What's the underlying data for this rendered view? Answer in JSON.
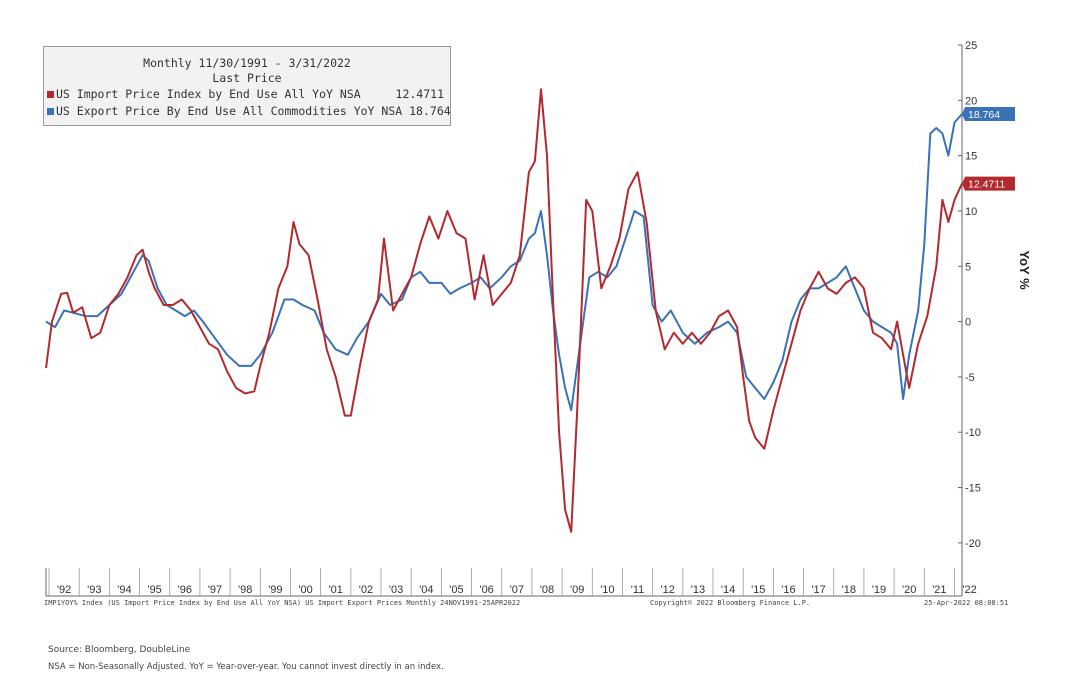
{
  "legend": {
    "title": "Monthly 11/30/1991 - 3/31/2022",
    "subtitle": "Last Price",
    "entries": [
      {
        "label": "US Import Price Index by End Use All YoY NSA",
        "value": "12.4711",
        "color": "#b22a2e"
      },
      {
        "label": "US Export Price By End Use All Commodities YoY NSA",
        "value": "18.764",
        "color": "#3a72b8"
      }
    ]
  },
  "chart_data": {
    "type": "line",
    "ylabel": "YoY %",
    "ylim": [
      -22,
      25
    ],
    "yticks": [
      25,
      20,
      15,
      10,
      5,
      0,
      -5,
      -10,
      -15,
      -20
    ],
    "ytick_labels": [
      "25",
      "20",
      "15",
      "10",
      "5",
      "0",
      "-5",
      "-10",
      "-15",
      "-20"
    ],
    "xlim": [
      1991.9,
      2022.25
    ],
    "xtick_labels": [
      "'92",
      "'93",
      "'94",
      "'95",
      "'96",
      "'97",
      "'98",
      "'99",
      "'00",
      "'01",
      "'02",
      "'03",
      "'04",
      "'05",
      "'06",
      "'07",
      "'08",
      "'09",
      "'10",
      "'11",
      "'12",
      "'13",
      "'14",
      "'15",
      "'16",
      "'17",
      "'18",
      "'19",
      "'20",
      "'21",
      "'22"
    ],
    "grid": false,
    "series": [
      {
        "name": "US Import Price Index by End Use All YoY NSA",
        "color": "#b22a2e",
        "last_value": "12.4711",
        "x": [
          1991.9,
          1992.1,
          1992.4,
          1992.6,
          1992.8,
          1993.1,
          1993.4,
          1993.7,
          1994.0,
          1994.3,
          1994.6,
          1994.9,
          1995.1,
          1995.3,
          1995.5,
          1995.8,
          1996.1,
          1996.4,
          1996.7,
          1997.0,
          1997.3,
          1997.6,
          1997.9,
          1998.2,
          1998.5,
          1998.8,
          1999.0,
          1999.3,
          1999.6,
          1999.9,
          2000.1,
          2000.3,
          2000.6,
          2000.9,
          2001.2,
          2001.5,
          2001.8,
          2002.0,
          2002.3,
          2002.6,
          2002.9,
          2003.1,
          2003.4,
          2003.7,
          2004.0,
          2004.3,
          2004.6,
          2004.9,
          2005.2,
          2005.5,
          2005.8,
          2006.1,
          2006.4,
          2006.7,
          2007.0,
          2007.3,
          2007.6,
          2007.9,
          2008.1,
          2008.3,
          2008.5,
          2008.7,
          2008.9,
          2009.1,
          2009.3,
          2009.5,
          2009.8,
          2010.0,
          2010.3,
          2010.6,
          2010.9,
          2011.2,
          2011.5,
          2011.8,
          2012.1,
          2012.4,
          2012.7,
          2013.0,
          2013.3,
          2013.6,
          2013.9,
          2014.2,
          2014.5,
          2014.8,
          2015.0,
          2015.2,
          2015.4,
          2015.7,
          2016.0,
          2016.3,
          2016.6,
          2016.9,
          2017.2,
          2017.5,
          2017.8,
          2018.1,
          2018.4,
          2018.7,
          2019.0,
          2019.3,
          2019.6,
          2019.9,
          2020.1,
          2020.3,
          2020.5,
          2020.8,
          2021.1,
          2021.4,
          2021.6,
          2021.8,
          2022.0,
          2022.25
        ],
        "values": [
          -4.2,
          0,
          2.5,
          2.6,
          0.8,
          1.3,
          -1.5,
          -1.0,
          1.5,
          2.5,
          4.0,
          6.0,
          6.5,
          4.5,
          3.0,
          1.5,
          1.5,
          2.0,
          1.0,
          -0.5,
          -2.0,
          -2.5,
          -4.5,
          -6.0,
          -6.5,
          -6.3,
          -4.0,
          -1.0,
          3.0,
          5.0,
          9.0,
          7.0,
          6.0,
          2.0,
          -2.5,
          -5.0,
          -8.5,
          -8.5,
          -4.0,
          0,
          2.0,
          7.5,
          1.0,
          2.5,
          4.0,
          7.0,
          9.5,
          7.5,
          10.0,
          8.0,
          7.5,
          2.0,
          6.0,
          1.5,
          2.5,
          3.5,
          6.0,
          13.5,
          14.5,
          21.0,
          15.0,
          2.0,
          -10.0,
          -17.0,
          -19.0,
          -8.0,
          11.0,
          10.0,
          3.0,
          5.0,
          7.5,
          12.0,
          13.5,
          9.0,
          1.0,
          -2.5,
          -1.0,
          -2.0,
          -1.0,
          -2.0,
          -1.0,
          0.5,
          1.0,
          -0.5,
          -5.0,
          -9.0,
          -10.5,
          -11.5,
          -8.0,
          -5.0,
          -2.0,
          1.0,
          3.0,
          4.5,
          3.0,
          2.5,
          3.5,
          4.0,
          3.0,
          -1.0,
          -1.5,
          -2.5,
          0,
          -3.0,
          -6.0,
          -2.0,
          0.5,
          5.0,
          11.0,
          9.0,
          11.0,
          12.4711
        ]
      },
      {
        "name": "US Export Price By End Use All Commodities YoY NSA",
        "color": "#3a72b8",
        "last_value": "18.764",
        "x": [
          1991.9,
          1992.2,
          1992.5,
          1992.8,
          1993.2,
          1993.6,
          1994.0,
          1994.4,
          1994.8,
          1995.1,
          1995.3,
          1995.6,
          1995.9,
          1996.2,
          1996.5,
          1996.8,
          1997.1,
          1997.5,
          1997.9,
          1998.3,
          1998.7,
          1999.0,
          1999.4,
          1999.8,
          2000.1,
          2000.4,
          2000.8,
          2001.1,
          2001.5,
          2001.9,
          2002.2,
          2002.6,
          2003.0,
          2003.3,
          2003.7,
          2004.0,
          2004.3,
          2004.6,
          2005.0,
          2005.3,
          2005.6,
          2006.0,
          2006.3,
          2006.6,
          2007.0,
          2007.3,
          2007.6,
          2007.9,
          2008.1,
          2008.3,
          2008.5,
          2008.7,
          2008.9,
          2009.1,
          2009.3,
          2009.6,
          2009.9,
          2010.2,
          2010.5,
          2010.8,
          2011.1,
          2011.4,
          2011.7,
          2012.0,
          2012.3,
          2012.6,
          2013.0,
          2013.4,
          2013.8,
          2014.2,
          2014.5,
          2014.8,
          2015.1,
          2015.4,
          2015.7,
          2016.0,
          2016.3,
          2016.6,
          2016.9,
          2017.2,
          2017.5,
          2017.8,
          2018.1,
          2018.4,
          2018.7,
          2019.0,
          2019.3,
          2019.6,
          2019.9,
          2020.1,
          2020.3,
          2020.5,
          2020.8,
          2021.0,
          2021.2,
          2021.4,
          2021.6,
          2021.8,
          2022.0,
          2022.25
        ],
        "values": [
          0,
          -0.5,
          1.0,
          0.8,
          0.5,
          0.5,
          1.5,
          2.5,
          4.5,
          6.0,
          5.5,
          3.0,
          1.5,
          1.0,
          0.5,
          1.0,
          0,
          -1.5,
          -3.0,
          -4.0,
          -4.0,
          -3.0,
          -1.0,
          2.0,
          2.0,
          1.5,
          1.0,
          -1.0,
          -2.5,
          -3.0,
          -1.5,
          0,
          2.5,
          1.5,
          2.0,
          4.0,
          4.5,
          3.5,
          3.5,
          2.5,
          3.0,
          3.5,
          4.0,
          3.0,
          4.0,
          5.0,
          5.5,
          7.5,
          8.0,
          10.0,
          6.0,
          1.0,
          -3.0,
          -6.0,
          -8.0,
          -2.0,
          4.0,
          4.5,
          4.0,
          5.0,
          7.5,
          10.0,
          9.5,
          1.5,
          0,
          1.0,
          -1.0,
          -2.0,
          -1.0,
          -0.5,
          0,
          -1.0,
          -5.0,
          -6.0,
          -7.0,
          -5.5,
          -3.5,
          0,
          2.0,
          3.0,
          3.0,
          3.5,
          4.0,
          5.0,
          3.0,
          1.0,
          0,
          -0.5,
          -1.0,
          -2.0,
          -7.0,
          -3.0,
          1.0,
          7.0,
          17.0,
          17.5,
          17.0,
          15.0,
          18.0,
          18.764
        ]
      }
    ]
  },
  "footer": {
    "meta_left": "IMP1YOY% Index (US Import Price Index by End Use All YoY NSA) US Import Export Prices  Monthly 24NOV1991-25APR2022",
    "meta_center": "Copyright© 2022 Bloomberg Finance L.P.",
    "meta_right": "25-Apr-2022 08:08:51",
    "source": "Source: Bloomberg, DoubleLine",
    "note": "NSA = Non-Seasonally Adjusted. YoY = Year-over-year. You cannot invest directly in an index."
  }
}
